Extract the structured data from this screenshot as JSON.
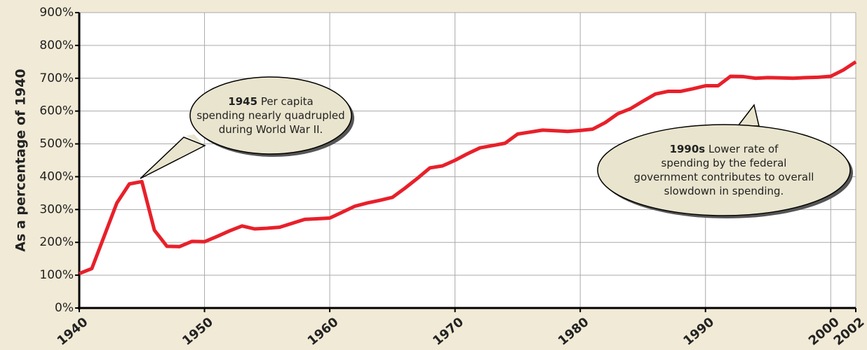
{
  "chart_data": {
    "type": "line",
    "y_label": "As a percentage of 1940",
    "x": [
      1940,
      1941,
      1942,
      1943,
      1944,
      1945,
      1946,
      1947,
      1948,
      1949,
      1950,
      1951,
      1952,
      1953,
      1954,
      1955,
      1956,
      1957,
      1958,
      1959,
      1960,
      1961,
      1962,
      1963,
      1964,
      1965,
      1966,
      1967,
      1968,
      1969,
      1970,
      1971,
      1972,
      1973,
      1974,
      1975,
      1976,
      1977,
      1978,
      1979,
      1980,
      1981,
      1982,
      1983,
      1984,
      1985,
      1986,
      1987,
      1988,
      1989,
      1990,
      1991,
      1992,
      1993,
      1994,
      1995,
      1996,
      1997,
      1998,
      1999,
      2000,
      2001,
      2002
    ],
    "series": [
      {
        "color": "#e8202a",
        "values": [
          105,
          120,
          220,
          320,
          378,
          385,
          237,
          188,
          187,
          203,
          202,
          218,
          235,
          250,
          241,
          243,
          246,
          258,
          270,
          272,
          274,
          292,
          310,
          320,
          328,
          337,
          365,
          395,
          427,
          433,
          450,
          470,
          488,
          495,
          502,
          530,
          536,
          542,
          540,
          538,
          541,
          545,
          565,
          592,
          607,
          630,
          652,
          660,
          660,
          668,
          677,
          677,
          706,
          705,
          700,
          702,
          701,
          700,
          702,
          703,
          706,
          725,
          750
        ]
      }
    ],
    "xlim": [
      1940,
      2002
    ],
    "xticks": [
      1940,
      1950,
      1960,
      1970,
      1980,
      1990,
      2000,
      2002
    ],
    "ylim": [
      0,
      900
    ],
    "yticks": [
      {
        "value": 0,
        "label": "0%"
      },
      {
        "value": 100,
        "label": "100%"
      },
      {
        "value": 200,
        "label": "200%"
      },
      {
        "value": 300,
        "label": "300%"
      },
      {
        "value": 400,
        "label": "400%"
      },
      {
        "value": 500,
        "label": "500%"
      },
      {
        "value": 600,
        "label": "600%"
      },
      {
        "value": 700,
        "label": "700%"
      },
      {
        "value": 800,
        "label": "800%"
      },
      {
        "value": 900,
        "label": "900%"
      }
    ],
    "grid": true,
    "annotations": [
      {
        "bold": "1945",
        "lines": [
          "Per capita",
          "spending nearly quadrupled",
          "during World War II."
        ]
      },
      {
        "bold": "1990s",
        "lines": [
          "Lower rate of",
          "spending by the federal",
          "government contributes to overall",
          "slowdown in spending."
        ]
      }
    ]
  }
}
